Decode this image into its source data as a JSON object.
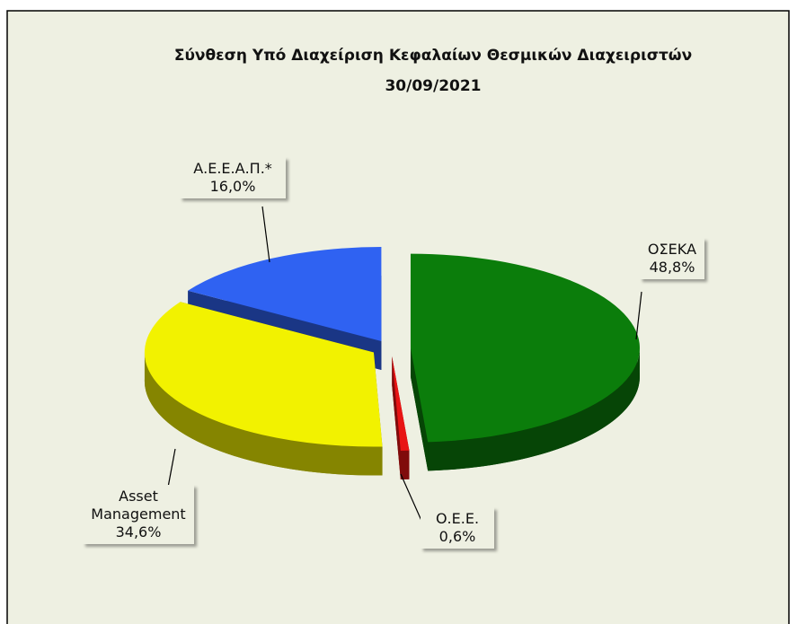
{
  "chart_data": {
    "type": "pie",
    "title": "Σύνθεση  Υπό Διαχείριση Κεφαλαίων Θεσμικών  Διαχειριστών",
    "subtitle": "30/09/2021",
    "categories": [
      "ΟΣΕΚΑ",
      "Ο.Ε.Ε.",
      "Asset Management",
      "Α.Ε.Ε.Α.Π.*"
    ],
    "values": [
      48.8,
      0.6,
      34.6,
      16.0
    ],
    "value_labels": [
      "48,8%",
      "0,6%",
      "34,6%",
      "16,0%"
    ],
    "colors": [
      "#0b7d0b",
      "#e81414",
      "#f2f200",
      "#2f62f2"
    ]
  }
}
